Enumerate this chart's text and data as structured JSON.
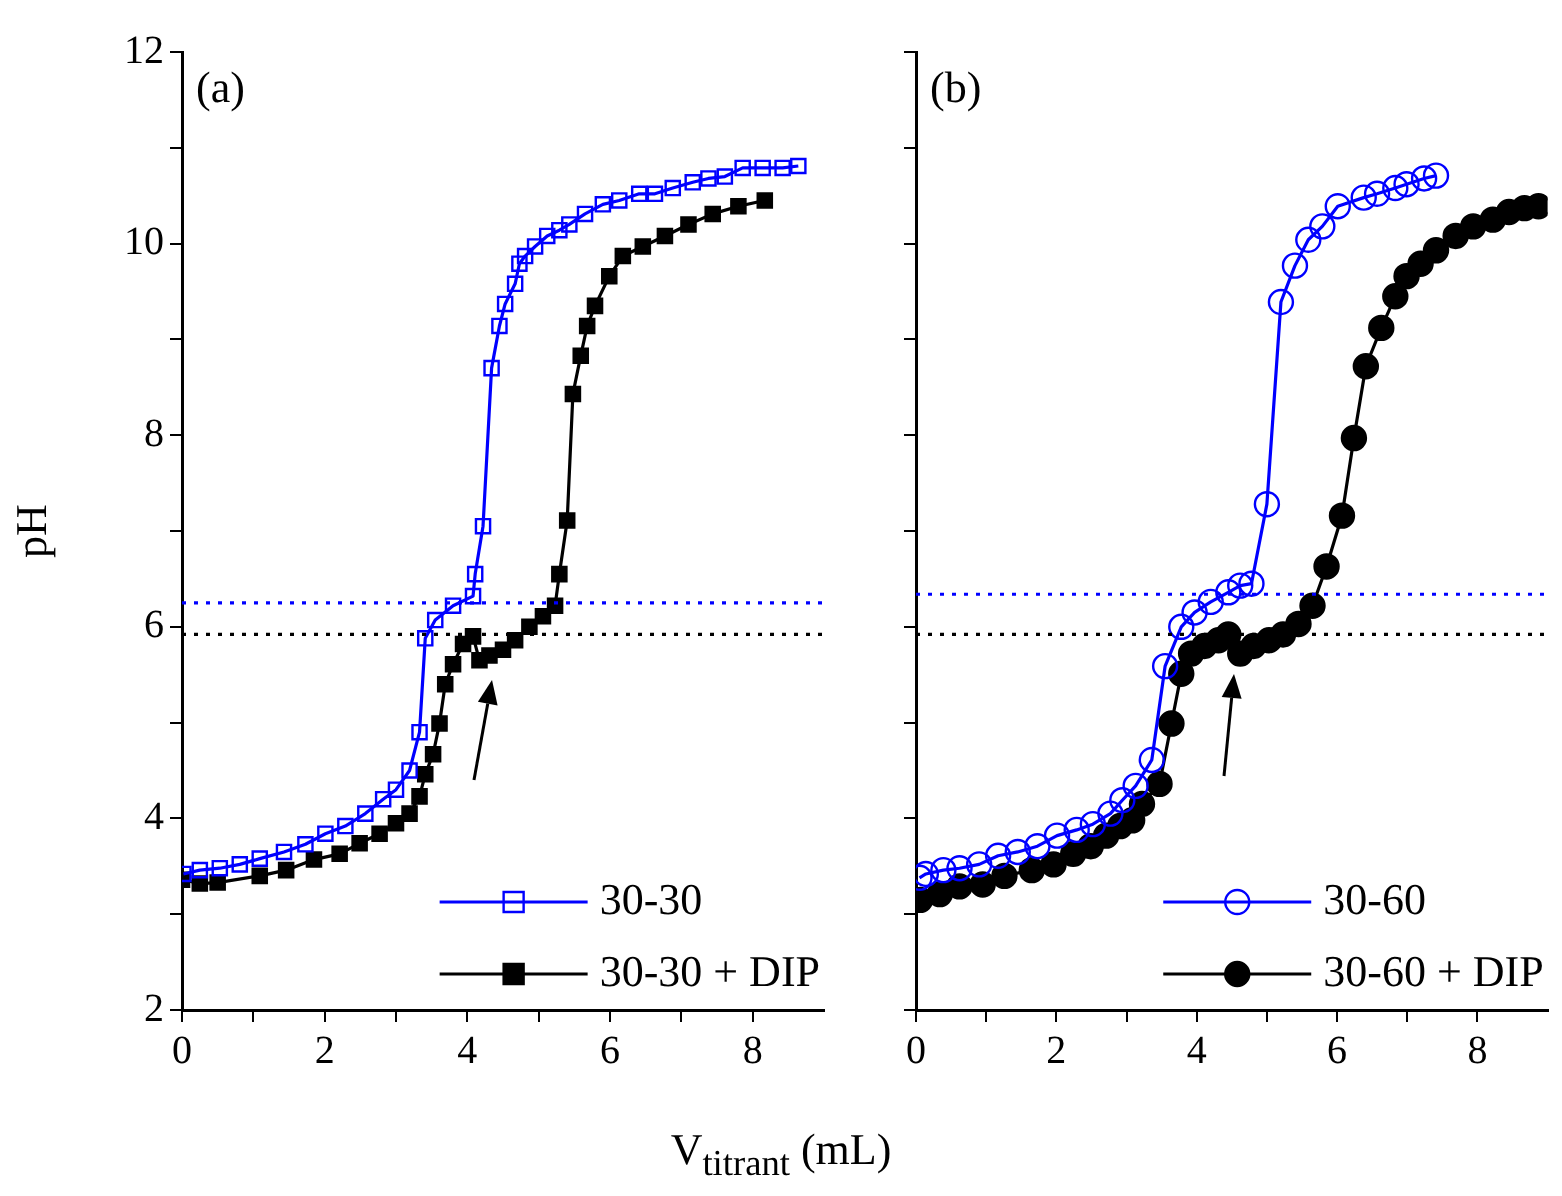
{
  "chart_data": [
    {
      "type": "line",
      "title": "(a)",
      "xlabel": "V$_{titrant}$ (mL)",
      "ylabel": "pH",
      "xlim": [
        0,
        9
      ],
      "ylim": [
        2,
        12
      ],
      "xticks": [
        0,
        {
          "value": 1,
          "label": null
        },
        2,
        {
          "value": 3,
          "label": null
        },
        4,
        {
          "value": 5,
          "label": null
        },
        6,
        {
          "value": 7,
          "label": null
        },
        8
      ],
      "yticks": [
        2,
        {
          "value": 3,
          "label": null
        },
        4,
        {
          "value": 5,
          "label": null
        },
        6,
        {
          "value": 7,
          "label": null
        },
        8,
        {
          "value": 9,
          "label": null
        },
        10,
        {
          "value": 11,
          "label": null
        },
        12
      ],
      "grid": false,
      "legend": "bottom right",
      "marker": "square",
      "line_style": "solid",
      "series": [
        {
          "name": "30-30",
          "color": "#0000ff",
          "x": [
            0.02,
            0.25,
            0.53,
            0.81,
            1.09,
            1.43,
            1.73,
            2.01,
            2.29,
            2.57,
            2.82,
            3.0,
            3.19,
            3.33,
            3.41,
            3.55,
            3.8,
            4.08,
            4.11,
            4.22,
            4.34,
            4.45,
            4.53,
            4.67,
            4.73,
            4.81,
            4.95,
            5.12,
            5.29,
            5.43,
            5.65,
            5.9,
            6.13,
            6.41,
            6.63,
            6.88,
            7.16,
            7.38,
            7.61,
            7.86,
            8.14,
            8.42,
            8.64
          ],
          "values": [
            3.42,
            3.46,
            3.48,
            3.52,
            3.58,
            3.65,
            3.73,
            3.84,
            3.92,
            4.05,
            4.2,
            4.3,
            4.5,
            4.9,
            5.88,
            6.07,
            6.22,
            6.32,
            6.55,
            7.05,
            8.7,
            9.14,
            9.37,
            9.58,
            9.79,
            9.87,
            9.97,
            10.08,
            10.14,
            10.2,
            10.31,
            10.41,
            10.45,
            10.52,
            10.52,
            10.58,
            10.64,
            10.68,
            10.7,
            10.79,
            10.79,
            10.79,
            10.81
          ]
        },
        {
          "name": "30-30 + DIP",
          "color": "#000000",
          "x": [
            0,
            0.25,
            0.5,
            1.09,
            1.46,
            1.85,
            2.21,
            2.49,
            2.77,
            3.0,
            3.19,
            3.33,
            3.41,
            3.52,
            3.61,
            3.69,
            3.8,
            3.94,
            4.08,
            4.17,
            4.31,
            4.5,
            4.67,
            4.87,
            5.06,
            5.23,
            5.29,
            5.4,
            5.48,
            5.59,
            5.68,
            5.79,
            5.99,
            6.18,
            6.46,
            6.77,
            7.1,
            7.44,
            7.8,
            8.17
          ],
          "values": [
            3.36,
            3.32,
            3.33,
            3.4,
            3.46,
            3.57,
            3.63,
            3.74,
            3.84,
            3.95,
            4.05,
            4.23,
            4.46,
            4.67,
            4.99,
            5.4,
            5.61,
            5.82,
            5.9,
            5.65,
            5.7,
            5.76,
            5.86,
            6.0,
            6.11,
            6.22,
            6.55,
            7.11,
            8.43,
            8.83,
            9.14,
            9.35,
            9.66,
            9.87,
            9.97,
            10.08,
            10.2,
            10.31,
            10.39,
            10.45
          ]
        }
      ],
      "ref_lines": [
        {
          "axis": "y",
          "value": 6.25,
          "color": "#0000ff",
          "line_style": "dotted"
        },
        {
          "axis": "y",
          "value": 5.92,
          "color": "#000000",
          "line_style": "dotted"
        }
      ]
    },
    {
      "type": "line",
      "title": "(b)",
      "xlim": [
        0,
        9
      ],
      "ylim": [
        2,
        12
      ],
      "xticks": [
        0,
        {
          "value": 1,
          "label": null
        },
        2,
        {
          "value": 3,
          "label": null
        },
        4,
        {
          "value": 5,
          "label": null
        },
        6,
        {
          "value": 7,
          "label": null
        },
        8
      ],
      "yticks": [
        {
          "value": 2,
          "label": null
        },
        {
          "value": 3,
          "label": null
        },
        {
          "value": 4,
          "label": null
        },
        {
          "value": 5,
          "label": null
        },
        {
          "value": 6,
          "label": null
        },
        {
          "value": 7,
          "label": null
        },
        {
          "value": 8,
          "label": null
        },
        {
          "value": 9,
          "label": null
        },
        {
          "value": 10,
          "label": null
        },
        {
          "value": 11,
          "label": null
        },
        {
          "value": 12,
          "label": null
        }
      ],
      "tick_labels": "x",
      "grid": false,
      "legend": "bottom right",
      "marker": "circle",
      "line_style": "solid",
      "series": [
        {
          "name": "30-60",
          "color": "#0000ff",
          "x": [
            0.05,
            0.14,
            0.39,
            0.62,
            0.9,
            1.17,
            1.45,
            1.73,
            2.01,
            2.29,
            2.52,
            2.77,
            2.94,
            3.13,
            3.36,
            3.55,
            3.78,
            3.97,
            4.2,
            4.45,
            4.62,
            4.78,
            5.0,
            5.2,
            5.4,
            5.59,
            5.79,
            6.01,
            6.38,
            6.57,
            6.83,
            6.99,
            7.24,
            7.41
          ],
          "values": [
            3.38,
            3.42,
            3.46,
            3.48,
            3.52,
            3.61,
            3.65,
            3.71,
            3.82,
            3.88,
            3.94,
            4.05,
            4.19,
            4.34,
            4.61,
            5.59,
            6.0,
            6.15,
            6.26,
            6.36,
            6.43,
            6.45,
            7.28,
            9.39,
            9.77,
            10.04,
            10.18,
            10.39,
            10.48,
            10.52,
            10.58,
            10.62,
            10.68,
            10.71
          ]
        },
        {
          "name": "30-60 + DIP",
          "color": "#000000",
          "x": [
            0.06,
            0.34,
            0.62,
            0.95,
            1.26,
            1.65,
            1.96,
            2.24,
            2.49,
            2.71,
            2.91,
            3.08,
            3.22,
            3.47,
            3.64,
            3.78,
            3.92,
            4.11,
            4.31,
            4.45,
            4.62,
            4.81,
            5.03,
            5.23,
            5.45,
            5.65,
            5.85,
            6.07,
            6.24,
            6.41,
            6.63,
            6.83,
            6.99,
            7.19,
            7.41,
            7.69,
            7.94,
            8.22,
            8.45,
            8.67,
            8.87
          ],
          "values": [
            3.15,
            3.21,
            3.29,
            3.31,
            3.4,
            3.46,
            3.52,
            3.63,
            3.71,
            3.82,
            3.92,
            3.98,
            4.15,
            4.36,
            4.99,
            5.51,
            5.72,
            5.8,
            5.86,
            5.92,
            5.72,
            5.8,
            5.86,
            5.92,
            6.03,
            6.22,
            6.63,
            7.16,
            7.97,
            8.72,
            9.12,
            9.45,
            9.66,
            9.79,
            9.93,
            10.08,
            10.18,
            10.25,
            10.33,
            10.37,
            10.39
          ]
        }
      ],
      "ref_lines": [
        {
          "axis": "y",
          "value": 6.34,
          "color": "#0000ff",
          "line_style": "dotted"
        },
        {
          "axis": "y",
          "value": 5.92,
          "color": "#000000",
          "line_style": "dotted"
        }
      ]
    }
  ]
}
